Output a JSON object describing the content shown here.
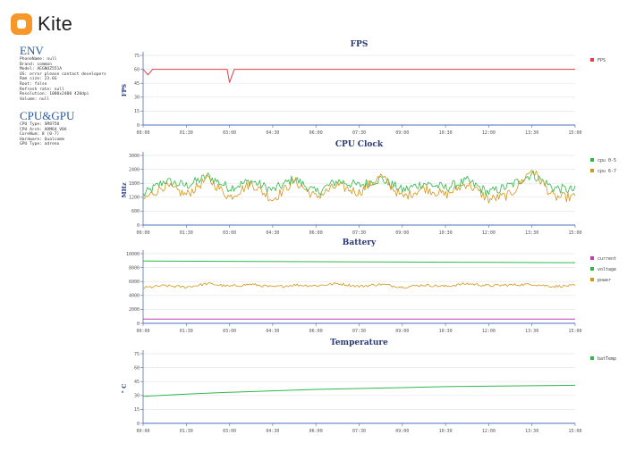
{
  "app": {
    "name": "Kite"
  },
  "env": {
    "title": "ENV",
    "lines": [
      "PhoneName: null",
      "Brand: common",
      "Model: AEGNUZ551A",
      "OS: error please contact developers",
      "Ram size: 23.6G",
      "Root: false",
      "Refresh rate: null",
      "Resolution: 1080x2400 420dpi",
      "Volume: null"
    ]
  },
  "cpu_gpu": {
    "title": "CPU&GPU",
    "lines": [
      "CPU Type: SM8750",
      "CPU Arch: ARM64_V8A",
      "CoreNum: 8 (0-7)",
      "Hardware: Qualcomm",
      "GPU Type: adreno"
    ]
  },
  "colors": {
    "fps": "#e0404a",
    "cpu1": "#2fb84a",
    "cpu2": "#d4961c",
    "current": "#c43ab2",
    "voltage": "#2fb84a",
    "power": "#d4961c",
    "temp": "#2fb84a",
    "axis": "#4a6fb8",
    "grid": "#e6e6e6"
  },
  "chart_data": [
    {
      "type": "line",
      "title": "FPS",
      "ylabel": "FPS",
      "ylim": [
        0,
        75
      ],
      "yticks": [
        0,
        15,
        30,
        45,
        60,
        75
      ],
      "x_tick_labels": [
        "00:00",
        "01:30",
        "03:00",
        "04:30",
        "06:00",
        "07:30",
        "09:00",
        "10:30",
        "12:00",
        "13:30",
        "15:00"
      ],
      "legend_position": "right",
      "grid": true,
      "series": [
        {
          "name": "FPS",
          "color_key": "fps",
          "x": [
            "00:00",
            "00:10",
            "00:20",
            "01:00",
            "02:00",
            "02:55",
            "03:00",
            "03:10",
            "04:30",
            "06:00",
            "07:30",
            "09:00",
            "10:30",
            "12:00",
            "13:30",
            "15:00"
          ],
          "values": [
            60,
            54,
            60,
            60,
            60,
            60,
            46,
            60,
            60,
            60,
            60,
            60,
            60,
            60,
            60,
            60
          ]
        }
      ]
    },
    {
      "type": "line",
      "title": "CPU Clock",
      "ylabel": "MHz",
      "ylim": [
        0,
        3000
      ],
      "yticks": [
        0,
        600,
        1200,
        1800,
        2400,
        3000
      ],
      "x_tick_labels": [
        "00:00",
        "01:30",
        "03:00",
        "04:30",
        "06:00",
        "07:30",
        "09:00",
        "10:30",
        "12:00",
        "13:30",
        "15:00"
      ],
      "legend_position": "right",
      "grid": true,
      "series": [
        {
          "name": "cpu 0-5",
          "color_key": "cpu1",
          "x": [
            "00:00",
            "00:45",
            "01:30",
            "02:15",
            "03:00",
            "03:45",
            "04:30",
            "05:15",
            "06:00",
            "06:45",
            "07:30",
            "08:15",
            "09:00",
            "09:45",
            "10:30",
            "11:15",
            "12:00",
            "12:45",
            "13:30",
            "14:15",
            "15:00"
          ],
          "values": [
            1300,
            1900,
            1700,
            2100,
            1600,
            1900,
            1500,
            2000,
            1400,
            1900,
            1700,
            2000,
            1500,
            1800,
            1600,
            1900,
            1400,
            1700,
            2200,
            1600,
            1500
          ]
        },
        {
          "name": "cpu 6-7",
          "color_key": "cpu2",
          "x": [
            "00:00",
            "00:45",
            "01:30",
            "02:15",
            "03:00",
            "03:45",
            "04:30",
            "05:15",
            "06:00",
            "06:45",
            "07:30",
            "08:15",
            "09:00",
            "09:45",
            "10:30",
            "11:15",
            "12:00",
            "12:45",
            "13:30",
            "14:15",
            "15:00"
          ],
          "values": [
            1100,
            1700,
            1300,
            2000,
            1200,
            1800,
            1100,
            1900,
            1200,
            1700,
            1400,
            2100,
            1200,
            1600,
            1300,
            1800,
            1100,
            1300,
            2400,
            1200,
            1200
          ]
        }
      ]
    },
    {
      "type": "line",
      "title": "Battery",
      "ylabel": "",
      "ylim": [
        0,
        10000
      ],
      "yticks": [
        0,
        2000,
        4000,
        6000,
        8000,
        10000
      ],
      "x_tick_labels": [
        "00:00",
        "01:30",
        "03:00",
        "04:30",
        "06:00",
        "07:30",
        "09:00",
        "10:30",
        "12:00",
        "13:30",
        "15:00"
      ],
      "legend_position": "right",
      "grid": true,
      "series": [
        {
          "name": "current",
          "color_key": "current",
          "x": [
            "00:00",
            "03:00",
            "06:00",
            "09:00",
            "12:00",
            "15:00"
          ],
          "values": [
            600,
            600,
            600,
            600,
            600,
            600
          ]
        },
        {
          "name": "voltage",
          "color_key": "voltage",
          "x": [
            "00:00",
            "03:00",
            "06:00",
            "09:00",
            "12:00",
            "15:00"
          ],
          "values": [
            8950,
            8900,
            8850,
            8800,
            8750,
            8700
          ]
        },
        {
          "name": "power",
          "color_key": "power",
          "x": [
            "00:00",
            "00:45",
            "01:30",
            "02:15",
            "03:00",
            "03:45",
            "04:30",
            "05:15",
            "06:00",
            "06:45",
            "07:30",
            "08:15",
            "09:00",
            "09:45",
            "10:30",
            "11:15",
            "12:00",
            "12:45",
            "13:30",
            "14:15",
            "15:00"
          ],
          "values": [
            5100,
            5400,
            5200,
            5700,
            5300,
            5600,
            5200,
            5500,
            5400,
            5700,
            5300,
            5600,
            5200,
            5500,
            5300,
            5700,
            5400,
            5500,
            5600,
            5300,
            5400
          ]
        }
      ]
    },
    {
      "type": "line",
      "title": "Temperature",
      "ylabel": "° C",
      "ylim": [
        0,
        75
      ],
      "yticks": [
        0,
        15,
        30,
        45,
        60,
        75
      ],
      "x_tick_labels": [
        "00:00",
        "01:30",
        "03:00",
        "04:30",
        "06:00",
        "07:30",
        "09:00",
        "10:30",
        "12:00",
        "13:30",
        "15:00"
      ],
      "legend_position": "right",
      "grid": true,
      "series": [
        {
          "name": "batTemp",
          "color_key": "temp",
          "x": [
            "00:00",
            "01:30",
            "03:00",
            "04:30",
            "06:00",
            "07:30",
            "09:00",
            "10:30",
            "12:00",
            "13:30",
            "15:00"
          ],
          "values": [
            29,
            31.5,
            33.5,
            35,
            36.5,
            37.5,
            38.5,
            39.5,
            40,
            40.5,
            41
          ]
        }
      ]
    }
  ]
}
